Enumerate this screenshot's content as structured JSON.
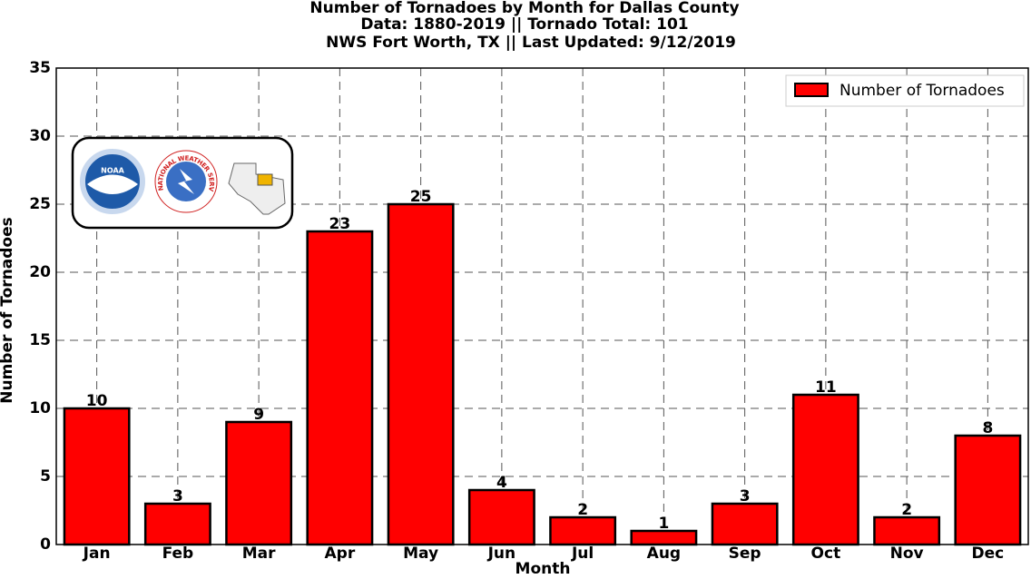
{
  "chart_data": {
    "type": "bar",
    "title": "Number of Tornadoes by Month for Dallas County",
    "subtitle": [
      "Data: 1880-2019 || Tornado Total: 101",
      "NWS Fort Worth, TX || Last Updated: 9/12/2019"
    ],
    "x_label": "Month",
    "y_label": "Number of Tornadoes",
    "categories": [
      "Jan",
      "Feb",
      "Mar",
      "Apr",
      "May",
      "Jun",
      "Jul",
      "Aug",
      "Sep",
      "Oct",
      "Nov",
      "Dec"
    ],
    "series": [
      {
        "name": "Number of Tornadoes",
        "color": "#ff0000",
        "values": [
          10,
          3,
          9,
          23,
          25,
          4,
          2,
          1,
          3,
          11,
          2,
          8
        ]
      }
    ],
    "ylim": [
      0,
      35
    ],
    "yticks": [
      0,
      5,
      10,
      15,
      20,
      25,
      30,
      35
    ],
    "grid": true,
    "legend": "upper right",
    "logo": {
      "noaa": "NOAA",
      "nws": "NATIONAL WEATHER SERVICE"
    }
  }
}
